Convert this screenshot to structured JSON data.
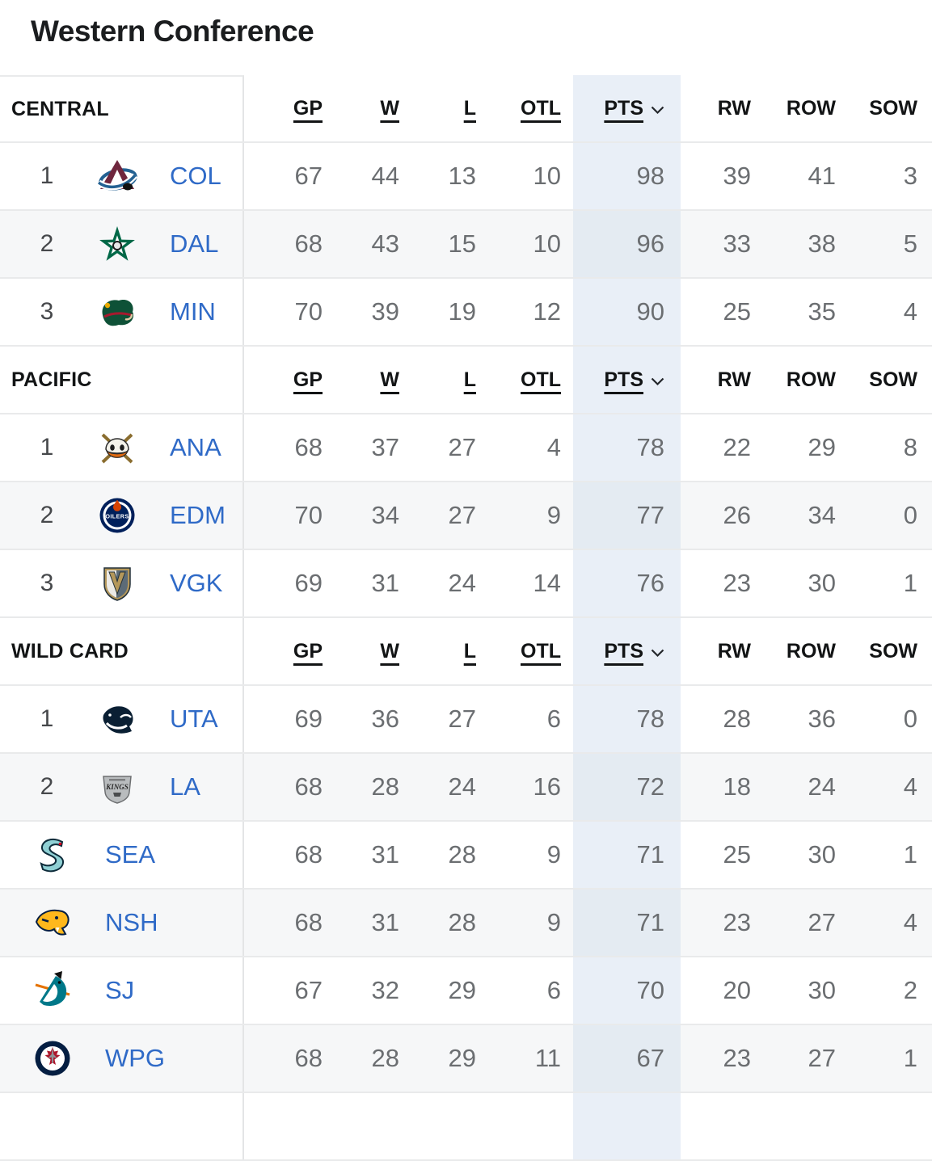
{
  "title": "Western Conference",
  "stat_columns": [
    {
      "key": "gp",
      "label": "GP",
      "sortable": true,
      "sorted": false
    },
    {
      "key": "w",
      "label": "W",
      "sortable": true,
      "sorted": false
    },
    {
      "key": "l",
      "label": "L",
      "sortable": true,
      "sorted": false
    },
    {
      "key": "otl",
      "label": "OTL",
      "sortable": true,
      "sorted": false
    },
    {
      "key": "pts",
      "label": "PTS",
      "sortable": true,
      "sorted": true,
      "sort_icon": "chevron-down-icon"
    },
    {
      "key": "rw",
      "label": "RW",
      "sortable": false,
      "sorted": false
    },
    {
      "key": "row",
      "label": "ROW",
      "sortable": false,
      "sorted": false
    },
    {
      "key": "sow",
      "label": "SOW",
      "sortable": false,
      "sorted": false
    }
  ],
  "sections": [
    {
      "label": "CENTRAL",
      "rows": [
        {
          "rank": "1",
          "team": "COL",
          "logo": "colorado-avalanche-logo",
          "gp": "67",
          "w": "44",
          "l": "13",
          "otl": "10",
          "pts": "98",
          "rw": "39",
          "row": "41",
          "sow": "3"
        },
        {
          "rank": "2",
          "team": "DAL",
          "logo": "dallas-stars-logo",
          "gp": "68",
          "w": "43",
          "l": "15",
          "otl": "10",
          "pts": "96",
          "rw": "33",
          "row": "38",
          "sow": "5"
        },
        {
          "rank": "3",
          "team": "MIN",
          "logo": "minnesota-wild-logo",
          "gp": "70",
          "w": "39",
          "l": "19",
          "otl": "12",
          "pts": "90",
          "rw": "25",
          "row": "35",
          "sow": "4"
        }
      ]
    },
    {
      "label": "PACIFIC",
      "rows": [
        {
          "rank": "1",
          "team": "ANA",
          "logo": "anaheim-ducks-logo",
          "gp": "68",
          "w": "37",
          "l": "27",
          "otl": "4",
          "pts": "78",
          "rw": "22",
          "row": "29",
          "sow": "8"
        },
        {
          "rank": "2",
          "team": "EDM",
          "logo": "edmonton-oilers-logo",
          "gp": "70",
          "w": "34",
          "l": "27",
          "otl": "9",
          "pts": "77",
          "rw": "26",
          "row": "34",
          "sow": "0"
        },
        {
          "rank": "3",
          "team": "VGK",
          "logo": "vegas-golden-knights-logo",
          "gp": "69",
          "w": "31",
          "l": "24",
          "otl": "14",
          "pts": "76",
          "rw": "23",
          "row": "30",
          "sow": "1"
        }
      ]
    },
    {
      "label": "WILD CARD",
      "rows": [
        {
          "rank": "1",
          "team": "UTA",
          "logo": "utah-mammoth-logo",
          "gp": "69",
          "w": "36",
          "l": "27",
          "otl": "6",
          "pts": "78",
          "rw": "28",
          "row": "36",
          "sow": "0"
        },
        {
          "rank": "2",
          "team": "LA",
          "logo": "la-kings-logo",
          "gp": "68",
          "w": "28",
          "l": "24",
          "otl": "16",
          "pts": "72",
          "rw": "18",
          "row": "24",
          "sow": "4"
        },
        {
          "rank": null,
          "team": "SEA",
          "logo": "seattle-kraken-logo",
          "gp": "68",
          "w": "31",
          "l": "28",
          "otl": "9",
          "pts": "71",
          "rw": "25",
          "row": "30",
          "sow": "1"
        },
        {
          "rank": null,
          "team": "NSH",
          "logo": "nashville-predators-logo",
          "gp": "68",
          "w": "31",
          "l": "28",
          "otl": "9",
          "pts": "71",
          "rw": "23",
          "row": "27",
          "sow": "4"
        },
        {
          "rank": null,
          "team": "SJ",
          "logo": "san-jose-sharks-logo",
          "gp": "67",
          "w": "32",
          "l": "29",
          "otl": "6",
          "pts": "70",
          "rw": "20",
          "row": "30",
          "sow": "2"
        },
        {
          "rank": null,
          "team": "WPG",
          "logo": "winnipeg-jets-logo",
          "gp": "68",
          "w": "28",
          "l": "29",
          "otl": "11",
          "pts": "67",
          "rw": "23",
          "row": "27",
          "sow": "1"
        }
      ]
    }
  ],
  "colors": {
    "team_link_blue": "#2f6ac7",
    "stat_text_gray": "#6b6e71",
    "rank_text": "#46484b",
    "header_text": "#121415",
    "pts_highlight": "#e9eff7",
    "pts_highlight_alt_row": "#e4ebf2",
    "alt_row_bg": "#f6f7f8",
    "row_border": "#e9eaeb",
    "column_divider": "#e4e5e6",
    "title_color": "#1b1d1f"
  }
}
